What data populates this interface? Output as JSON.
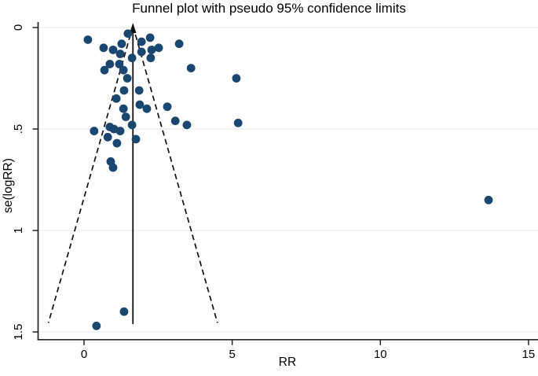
{
  "chart_data": {
    "type": "scatter",
    "title": "Funnel plot with pseudo 95% confidence limits",
    "xlabel": "RR",
    "ylabel": "se(logRR)",
    "x_ticks": [
      0,
      5,
      10,
      15
    ],
    "x_tick_labels": [
      "0",
      "5",
      "10",
      "15"
    ],
    "y_ticks": [
      0,
      0.5,
      1,
      1.5
    ],
    "y_tick_labels": [
      "0",
      ".5",
      "1",
      "1.5"
    ],
    "xlim": [
      -1.56,
      15.32
    ],
    "ylim": [
      1.54,
      -0.03
    ],
    "y_axis_inverted": true,
    "grid": true,
    "legend": "none",
    "pooled_estimate_rr": 1.65,
    "pseudo_ci": {
      "center_rr": 1.65,
      "z": 1.96,
      "se_top": 0,
      "se_bottom": 1.455
    },
    "points": [
      [
        0.13,
        0.06
      ],
      [
        0.66,
        0.1
      ],
      [
        1.27,
        0.08
      ],
      [
        1.48,
        0.03
      ],
      [
        1.94,
        0.07
      ],
      [
        2.23,
        0.05
      ],
      [
        0.98,
        0.11
      ],
      [
        1.22,
        0.13
      ],
      [
        1.94,
        0.12
      ],
      [
        2.28,
        0.11
      ],
      [
        2.52,
        0.1
      ],
      [
        3.21,
        0.08
      ],
      [
        3.61,
        0.2
      ],
      [
        5.14,
        0.25
      ],
      [
        0.87,
        0.18
      ],
      [
        1.19,
        0.18
      ],
      [
        1.62,
        0.15
      ],
      [
        2.25,
        0.15
      ],
      [
        0.69,
        0.21
      ],
      [
        1.33,
        0.21
      ],
      [
        1.46,
        0.25
      ],
      [
        1.35,
        0.31
      ],
      [
        1.86,
        0.31
      ],
      [
        1.09,
        0.35
      ],
      [
        1.33,
        0.4
      ],
      [
        1.88,
        0.38
      ],
      [
        2.12,
        0.4
      ],
      [
        2.81,
        0.39
      ],
      [
        1.41,
        0.44
      ],
      [
        0.87,
        0.49
      ],
      [
        1.62,
        0.48
      ],
      [
        3.08,
        0.46
      ],
      [
        3.47,
        0.48
      ],
      [
        5.2,
        0.47
      ],
      [
        0.34,
        0.51
      ],
      [
        0.8,
        0.54
      ],
      [
        1.01,
        0.5
      ],
      [
        1.22,
        0.51
      ],
      [
        1.11,
        0.57
      ],
      [
        1.75,
        0.55
      ],
      [
        0.9,
        0.66
      ],
      [
        0.98,
        0.69
      ],
      [
        13.65,
        0.85
      ],
      [
        0.42,
        1.47
      ],
      [
        1.35,
        1.4
      ]
    ],
    "colors": {
      "marker": "#1a476f",
      "grid": "#e4eef5",
      "axis": "#242424",
      "funnel_lines": "#111111",
      "text": "#000000",
      "background": "#ffffff"
    }
  }
}
